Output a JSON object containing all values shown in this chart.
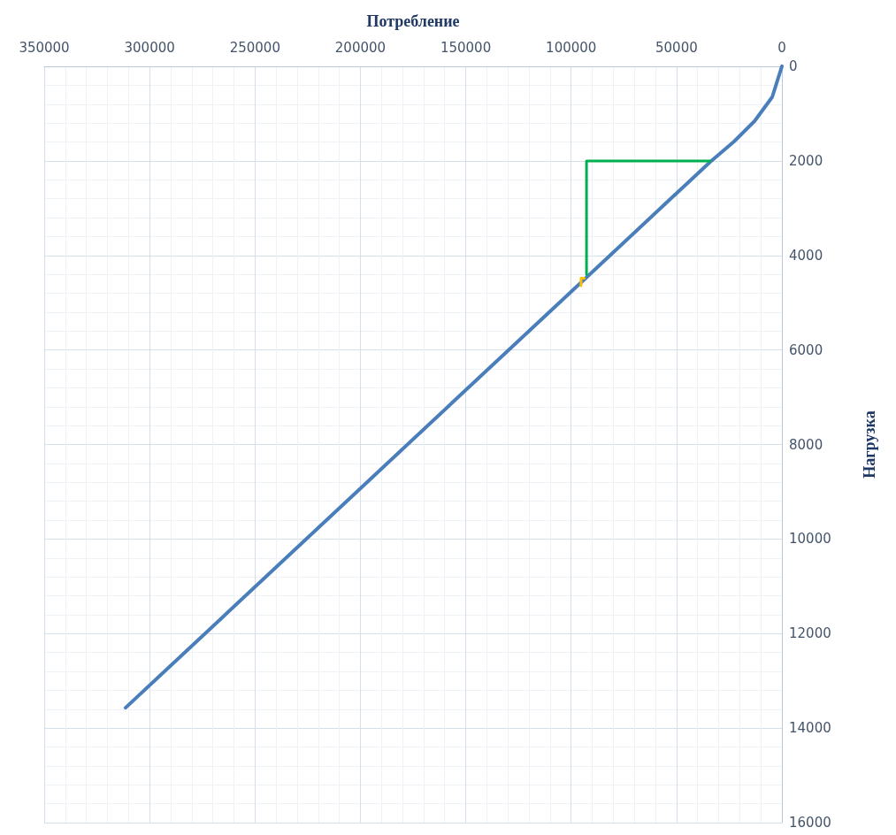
{
  "chart_data": {
    "type": "line",
    "xlabel": "Потребление",
    "ylabel": "Нагрузка",
    "xlim": [
      350000,
      0
    ],
    "xticks": [
      0,
      50000,
      100000,
      150000,
      200000,
      250000,
      300000,
      350000
    ],
    "ylim": [
      16000,
      0
    ],
    "yticks": [
      0,
      2000,
      4000,
      6000,
      8000,
      10000,
      12000,
      14000,
      16000
    ],
    "grid": true,
    "marker": "none",
    "line_style": "solid",
    "series": [
      {
        "color": "#4a7ebb",
        "x": [
          0,
          4600,
          13000,
          22700,
          34000,
          92100,
          200000,
          311400
        ],
        "values": [
          0,
          650,
          1160,
          1590,
          2020,
          4440,
          8930,
          13570
        ]
      },
      {
        "color": "#00b050",
        "x": [
          34000,
          92700,
          92700
        ],
        "values": [
          2000,
          2000,
          4400
        ]
      },
      {
        "color": "#ffc000",
        "x": [
          95300,
          95300,
          93800
        ],
        "values": [
          4640,
          4480,
          4480
        ]
      }
    ]
  }
}
